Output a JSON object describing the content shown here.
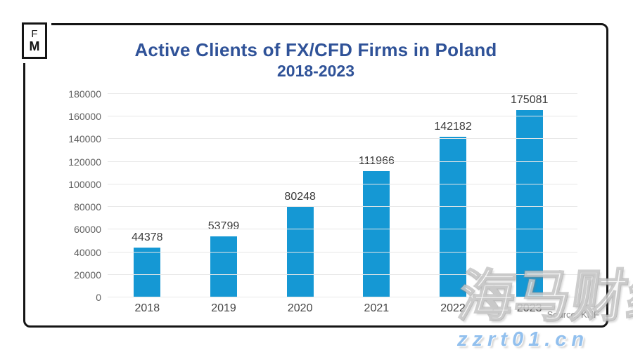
{
  "logo": {
    "line1": "F",
    "line2": "M"
  },
  "header": {
    "title": "Active Clients of FX/CFD Firms in Poland",
    "subtitle": "2018-2023"
  },
  "source_label": "Source: KNF",
  "watermark": {
    "cjk_text": "海马财经",
    "url_text": "zzrt01.cn"
  },
  "colors": {
    "bar": "#1598d4",
    "title_blue": "#2f5298",
    "gridline": "#e7e7e7",
    "axis_text": "#5f5f5f",
    "value_text": "#3a3a3a",
    "watermark_blue": "#92c0ee",
    "card_border": "#151515"
  },
  "chart_data": {
    "type": "bar",
    "title": "Active Clients of FX/CFD Firms in Poland",
    "subtitle": "2018-2023",
    "categories": [
      "2018",
      "2019",
      "2020",
      "2021",
      "2022",
      "2023"
    ],
    "values": [
      44378,
      53799,
      80248,
      111966,
      142182,
      175081
    ],
    "xlabel": "",
    "ylabel": "",
    "ylim": [
      0,
      180000
    ],
    "yticks": [
      0,
      20000,
      40000,
      60000,
      80000,
      100000,
      120000,
      140000,
      160000,
      180000
    ],
    "grid": true,
    "legend": "none",
    "bar_color": "#1598d4"
  }
}
